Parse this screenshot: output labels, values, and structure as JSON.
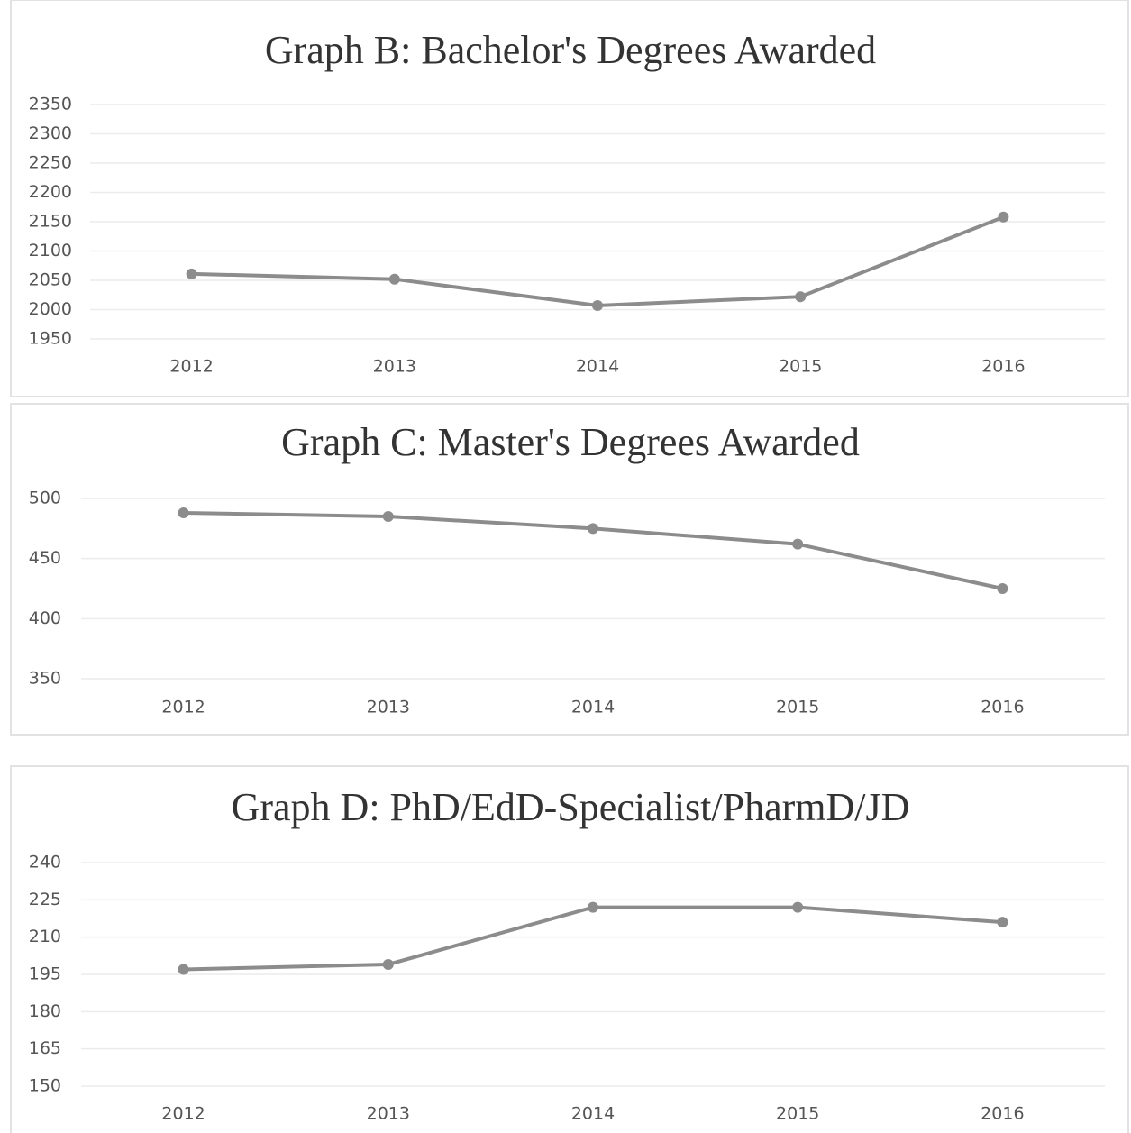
{
  "chart_data": [
    {
      "type": "line",
      "title": "Graph B: Bachelor's Degrees Awarded",
      "categories": [
        "2012",
        "2013",
        "2014",
        "2015",
        "2016"
      ],
      "series": [
        {
          "name": "Bachelor's Degrees",
          "color": "#8c8c8c",
          "values": [
            2061,
            2052,
            2007,
            2022,
            2158
          ]
        }
      ],
      "ylim": [
        1950,
        2350
      ],
      "yticks": [
        1950,
        2000,
        2050,
        2100,
        2150,
        2200,
        2250,
        2300,
        2350
      ],
      "grid": true
    },
    {
      "type": "line",
      "title": "Graph C: Master's Degrees Awarded",
      "categories": [
        "2012",
        "2013",
        "2014",
        "2015",
        "2016"
      ],
      "series": [
        {
          "name": "Master's Degrees",
          "color": "#8c8c8c",
          "values": [
            488,
            485,
            475,
            462,
            425
          ]
        }
      ],
      "ylim": [
        350,
        500
      ],
      "yticks": [
        350,
        400,
        450,
        500
      ],
      "grid": true
    },
    {
      "type": "line",
      "title": "Graph D: PhD/EdD-Specialist/PharmD/JD",
      "categories": [
        "2012",
        "2013",
        "2014",
        "2015",
        "2016"
      ],
      "series": [
        {
          "name": "PhD/EdD-Specialist/PharmD/JD",
          "color": "#8c8c8c",
          "values": [
            197,
            199,
            222,
            222,
            216
          ]
        }
      ],
      "ylim": [
        150,
        240
      ],
      "yticks": [
        150,
        165,
        180,
        195,
        210,
        225,
        240
      ],
      "grid": true
    }
  ]
}
